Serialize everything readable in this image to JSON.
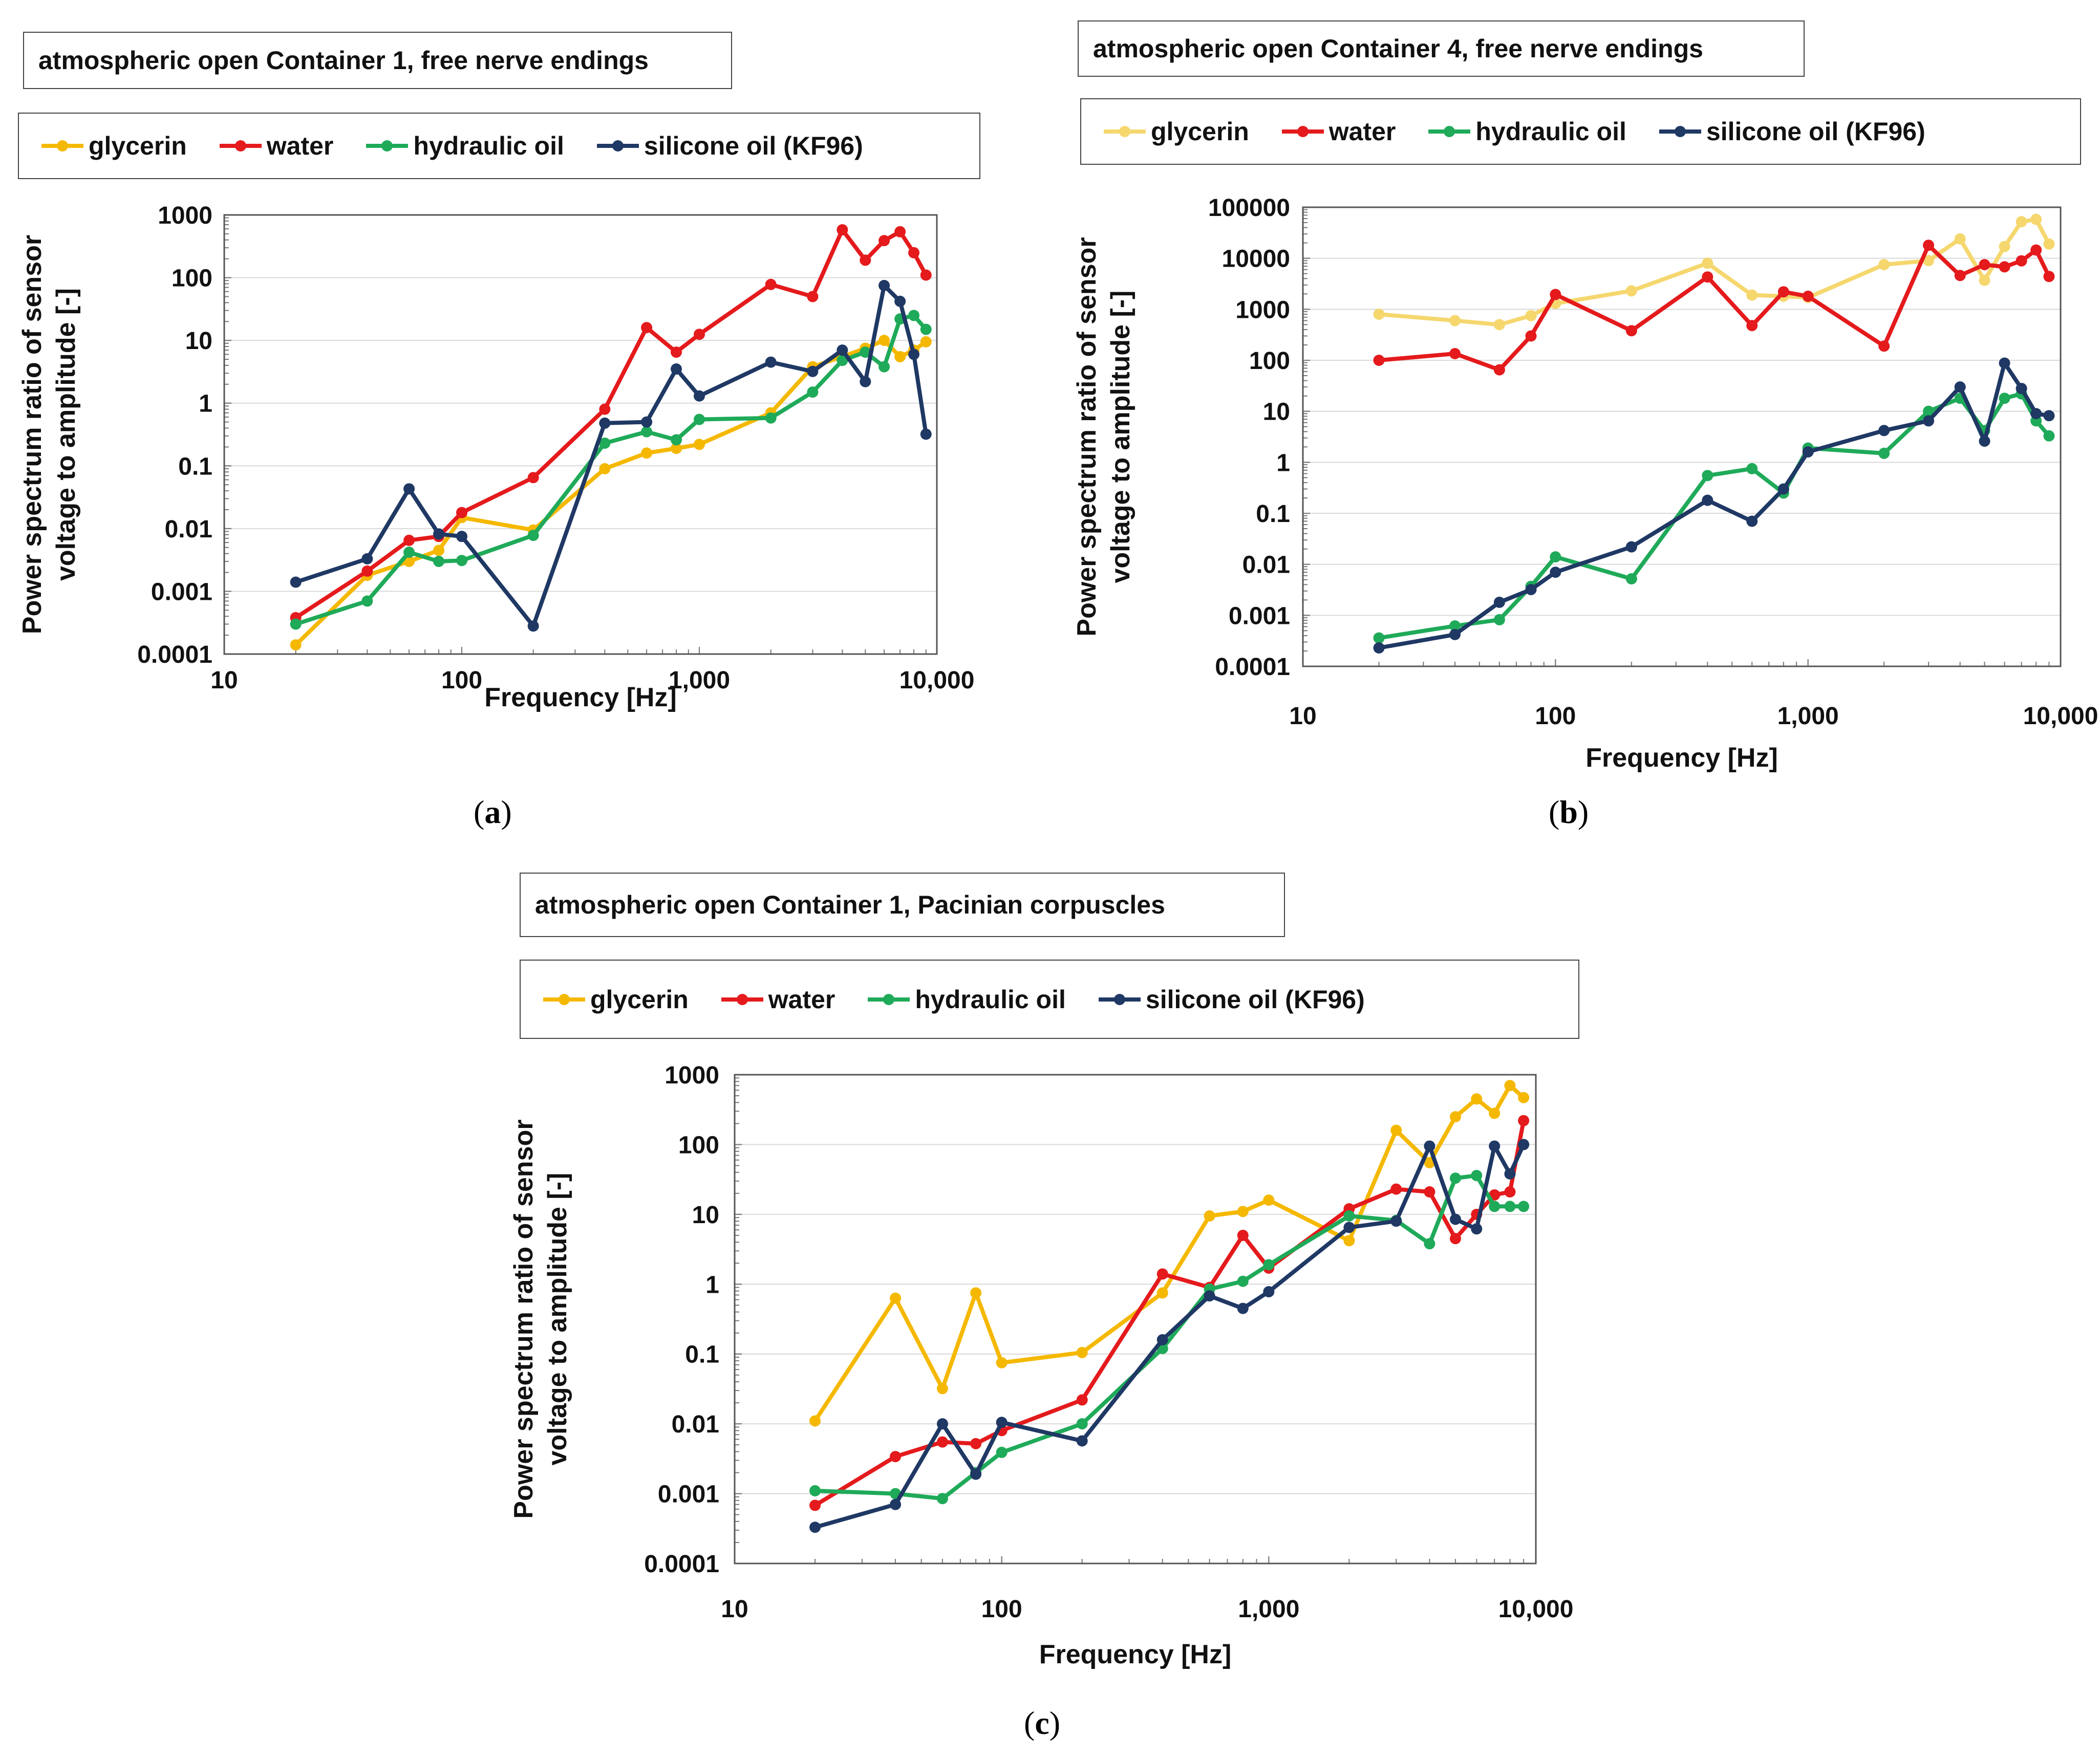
{
  "captions": [
    "(a)",
    "(b)",
    "(c)"
  ],
  "chart_data": [
    {
      "type": "line",
      "title": "atmospheric open Container 1, free nerve endings",
      "xlabel": "Frequency   [Hz]",
      "ylabel": "Power spectrum ratio of sensor voltage to amplitude [-]",
      "xscale": "log",
      "yscale": "log",
      "xlim": [
        10,
        10000
      ],
      "ylim": [
        0.0001,
        1000
      ],
      "xticks": [
        "10",
        "100",
        "1,000",
        "10,000"
      ],
      "yticks": [
        "0.0001",
        "0.001",
        "0.01",
        "0.1",
        "1",
        "10",
        "100",
        "1000"
      ],
      "x": [
        20,
        40,
        60,
        80,
        100,
        200,
        400,
        600,
        800,
        1000,
        2000,
        3000,
        4000,
        5000,
        6000,
        7000,
        8000,
        9000
      ],
      "series": [
        {
          "name": "glycerin",
          "color": "#F5B800",
          "values": [
            0.00014,
            0.0018,
            0.003,
            0.0045,
            0.015,
            0.0095,
            0.09,
            0.16,
            0.19,
            0.22,
            0.7,
            3.8,
            5.5,
            7.5,
            10,
            5.5,
            7,
            9.5
          ]
        },
        {
          "name": "water",
          "color": "#E41A1C",
          "values": [
            0.00038,
            0.0021,
            0.0065,
            0.0075,
            0.018,
            0.065,
            0.8,
            16,
            6.5,
            12.5,
            78,
            50,
            580,
            190,
            390,
            540,
            250,
            110
          ]
        },
        {
          "name": "hydraulic oil",
          "color": "#1FAA59",
          "values": [
            0.0003,
            0.0007,
            0.0042,
            0.003,
            0.0031,
            0.0078,
            0.23,
            0.35,
            0.26,
            0.55,
            0.58,
            1.5,
            4.8,
            6.5,
            3.8,
            22,
            25,
            15
          ]
        },
        {
          "name": "silicone oil (KF96)",
          "color": "#1F3864",
          "values": [
            0.0014,
            0.0033,
            0.043,
            0.0082,
            0.0075,
            0.00028,
            0.48,
            0.5,
            3.5,
            1.3,
            4.5,
            3.2,
            7,
            2.2,
            75,
            42,
            6,
            0.32
          ]
        }
      ]
    },
    {
      "type": "line",
      "title": "atmospheric open Container 4, free nerve endings",
      "xlabel": "Frequency   [Hz]",
      "ylabel": "Power spectrum ratio of sensor voltage to amplitude [-]",
      "xscale": "log",
      "yscale": "log",
      "xlim": [
        10,
        10000
      ],
      "ylim": [
        0.0001,
        100000
      ],
      "xticks": [
        "10",
        "100",
        "1,000",
        "10,000"
      ],
      "yticks": [
        "0.0001",
        "0.001",
        "0.01",
        "0.1",
        "1",
        "10",
        "100",
        "1000",
        "10000",
        "100000"
      ],
      "x": [
        20,
        40,
        60,
        80,
        100,
        200,
        400,
        600,
        800,
        1000,
        2000,
        3000,
        4000,
        5000,
        6000,
        7000,
        8000,
        9000
      ],
      "series": [
        {
          "name": "glycerin",
          "color": "#F5D76E",
          "values": [
            800,
            600,
            500,
            750,
            1300,
            2300,
            8000,
            1900,
            1800,
            1700,
            7500,
            9000,
            24000,
            3700,
            17000,
            52000,
            58000,
            19000
          ]
        },
        {
          "name": "water",
          "color": "#E41A1C",
          "values": [
            100,
            135,
            65,
            300,
            1950,
            380,
            4300,
            480,
            2200,
            1800,
            190,
            18000,
            4600,
            7500,
            6800,
            8900,
            14500,
            4400
          ]
        },
        {
          "name": "hydraulic oil",
          "color": "#1FAA59",
          "values": [
            0.00036,
            0.00062,
            0.00082,
            0.0037,
            0.014,
            0.0052,
            0.55,
            0.75,
            0.25,
            1.9,
            1.5,
            10,
            18,
            4.2,
            18,
            22,
            6.5,
            3.3
          ]
        },
        {
          "name": "silicone oil (KF96)",
          "color": "#1F3864",
          "values": [
            0.00023,
            0.00042,
            0.0018,
            0.0032,
            0.007,
            0.022,
            0.18,
            0.07,
            0.3,
            1.6,
            4.2,
            6.5,
            30,
            2.6,
            88,
            28,
            9,
            8.2
          ]
        }
      ]
    },
    {
      "type": "line",
      "title": "atmospheric open Container 1, Pacinian corpuscles",
      "xlabel": "Frequency   [Hz]",
      "ylabel": "Power spectrum ratio of sensor voltage to amplitude [-]",
      "xscale": "log",
      "yscale": "log",
      "xlim": [
        10,
        10000
      ],
      "ylim": [
        0.0001,
        1000
      ],
      "xticks": [
        "10",
        "100",
        "1,000",
        "10,000"
      ],
      "yticks": [
        "0.0001",
        "0.001",
        "0.01",
        "0.1",
        "1",
        "10",
        "100",
        "1000"
      ],
      "x": [
        20,
        40,
        60,
        80,
        100,
        200,
        400,
        600,
        800,
        1000,
        2000,
        3000,
        4000,
        5000,
        6000,
        7000,
        8000,
        9000
      ],
      "series": [
        {
          "name": "glycerin",
          "color": "#F5B800",
          "values": [
            0.011,
            0.63,
            0.032,
            0.75,
            0.075,
            0.105,
            0.75,
            9.5,
            11,
            16,
            4.2,
            160,
            55,
            250,
            450,
            280,
            700,
            470
          ]
        },
        {
          "name": "water",
          "color": "#E41A1C",
          "values": [
            0.00068,
            0.0034,
            0.0055,
            0.0052,
            0.008,
            0.022,
            1.4,
            0.9,
            5,
            1.7,
            12,
            23,
            21,
            4.5,
            10,
            19,
            21,
            220
          ]
        },
        {
          "name": "hydraulic oil",
          "color": "#1FAA59",
          "values": [
            0.0011,
            0.001,
            0.00085,
            0.002,
            0.0039,
            0.01,
            0.12,
            0.85,
            1.1,
            1.9,
            9.5,
            8.2,
            3.8,
            33,
            36,
            13,
            13,
            13
          ]
        },
        {
          "name": "silicone oil (KF96)",
          "color": "#1F3864",
          "values": [
            0.00033,
            0.0007,
            0.01,
            0.0019,
            0.0105,
            0.0057,
            0.16,
            0.68,
            0.45,
            0.78,
            6.5,
            8,
            95,
            8.5,
            6.2,
            95,
            38,
            100
          ]
        }
      ]
    }
  ]
}
